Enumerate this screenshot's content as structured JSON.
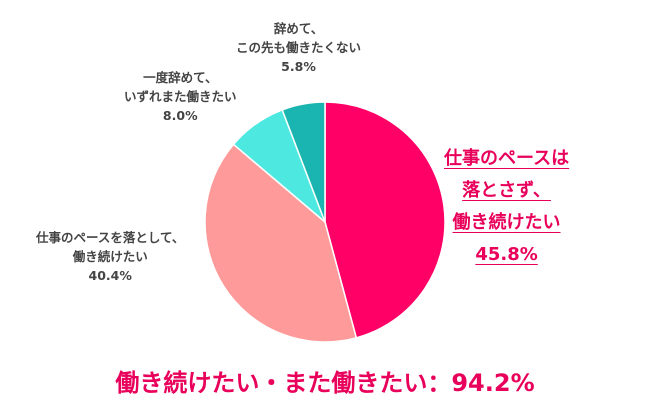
{
  "chart_data": {
    "type": "pie",
    "slices": [
      {
        "lines": [
          "仕事のペースは",
          "落とさず、",
          "働き続けたい"
        ],
        "value_label": "45.8%",
        "value": 45.8,
        "color": "#ff0066"
      },
      {
        "lines": [
          "仕事のペースを落として、",
          "働き続けたい"
        ],
        "value_label": "40.4%",
        "value": 40.4,
        "color": "#ff9a9a"
      },
      {
        "lines": [
          "一度辞めて、",
          "いずれまた働きたい"
        ],
        "value_label": "8.0%",
        "value": 8.0,
        "color": "#4de8e0"
      },
      {
        "lines": [
          "辞めて、",
          "この先も働きたくない"
        ],
        "value_label": "5.8%",
        "value": 5.8,
        "color": "#1ab5b0"
      }
    ],
    "start_angle_deg": 0,
    "direction": "clockwise"
  },
  "summary": "働き続けたい・また働きたい：94.2%"
}
